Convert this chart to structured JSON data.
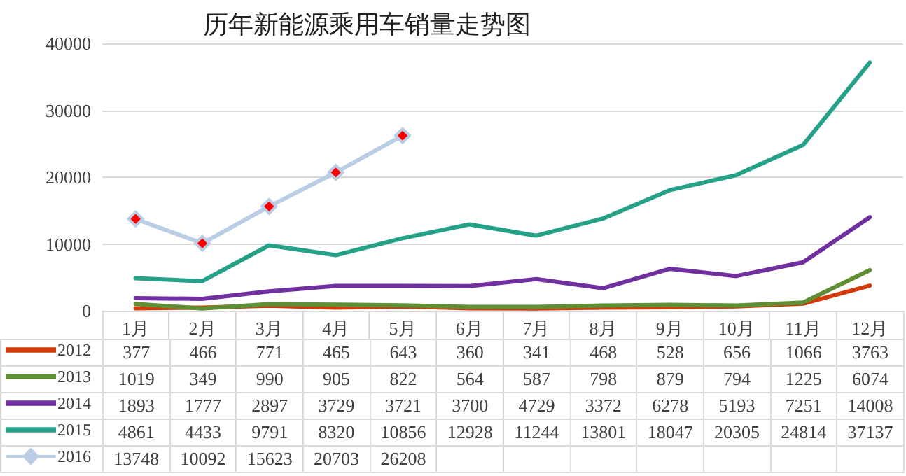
{
  "chart_data": {
    "type": "line",
    "title": "历年新能源乘用车销量走势图",
    "categories": [
      "1月",
      "2月",
      "3月",
      "4月",
      "5月",
      "6月",
      "7月",
      "8月",
      "9月",
      "10月",
      "11月",
      "12月"
    ],
    "series": [
      {
        "name": "2012",
        "color": "#d33b0b",
        "marker": "none",
        "values": [
          377,
          466,
          771,
          465,
          643,
          360,
          341,
          468,
          528,
          656,
          1066,
          3763
        ]
      },
      {
        "name": "2013",
        "color": "#5f8f35",
        "marker": "none",
        "values": [
          1019,
          349,
          990,
          905,
          822,
          564,
          587,
          798,
          879,
          794,
          1225,
          6074
        ]
      },
      {
        "name": "2014",
        "color": "#7030a0",
        "marker": "none",
        "values": [
          1893,
          1777,
          2897,
          3729,
          3721,
          3700,
          4729,
          3372,
          6278,
          5193,
          7251,
          14008
        ]
      },
      {
        "name": "2015",
        "color": "#25a189",
        "marker": "none",
        "values": [
          4861,
          4433,
          9791,
          8320,
          10856,
          12928,
          11244,
          13801,
          18047,
          20305,
          24814,
          37137
        ]
      },
      {
        "name": "2016",
        "color": "#b9cde4",
        "marker": "diamond",
        "colors": [
          "#ff0000",
          "#ff0000",
          "#ff0000",
          "#ff0000",
          "#ff0000",
          null,
          null,
          null,
          null,
          null,
          null,
          null
        ],
        "values": [
          13748,
          10092,
          15623,
          20703,
          26208,
          null,
          null,
          null,
          null,
          null,
          null,
          null
        ]
      }
    ],
    "ylim": [
      0,
      40000
    ],
    "yticks": [
      0,
      10000,
      20000,
      30000,
      40000
    ],
    "grid": "y",
    "legend": "bottom left",
    "data_labels": true,
    "line_style": "solid"
  }
}
